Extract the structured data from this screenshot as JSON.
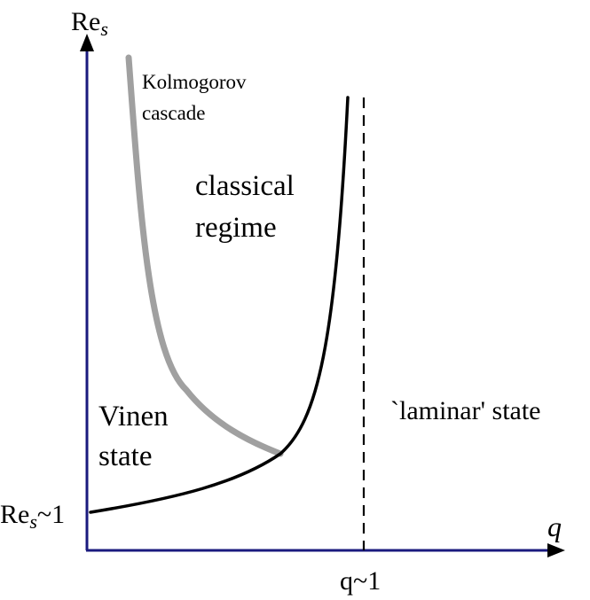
{
  "axes": {
    "y_label_main": "Re",
    "y_label_sub": "s",
    "x_label": "q",
    "y_tick_main": "Re",
    "y_tick_sub": "s",
    "y_tick_rest": "~1",
    "x_tick": "q~1",
    "axis_color": "#1a1a7e"
  },
  "regions": {
    "kolmogorov_line1": "Kolmogorov",
    "kolmogorov_line2": "cascade",
    "classical_line1": "classical",
    "classical_line2": "regime",
    "vinen_line1": "Vinen",
    "vinen_line2": "state",
    "laminar": "`laminar' state"
  },
  "curves": {
    "kolmogorov_color": "#a0a0a0",
    "boundary_color": "#000000"
  }
}
